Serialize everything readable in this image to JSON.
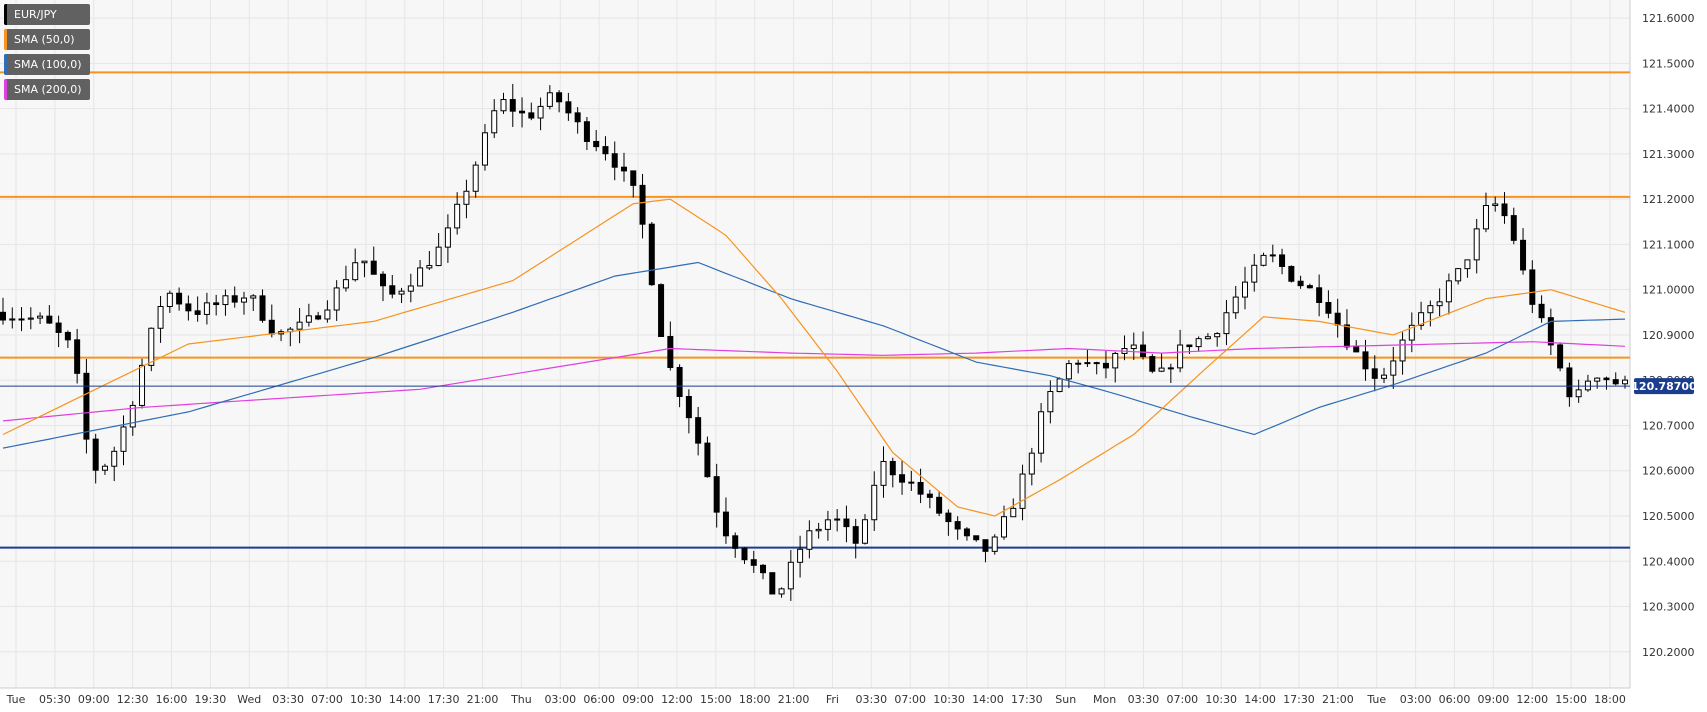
{
  "chart_data": {
    "type": "candlestick",
    "symbol": "EUR/JPY",
    "legend": [
      {
        "label": "EUR/JPY",
        "color": "#000000"
      },
      {
        "label": "SMA (50,0)",
        "color": "#f7931e"
      },
      {
        "label": "SMA (100,0)",
        "color": "#2f6db5"
      },
      {
        "label": "SMA (200,0)",
        "color": "#e040e0"
      }
    ],
    "ylim": [
      120.12,
      121.64
    ],
    "y_ticks": [
      "121.6000",
      "121.5000",
      "121.4000",
      "121.3000",
      "121.2000",
      "121.1000",
      "121.0000",
      "120.9000",
      "120.8000",
      "120.7000",
      "120.6000",
      "120.5000",
      "120.4000",
      "120.3000",
      "120.2000"
    ],
    "x_ticks": [
      "Tue",
      "05:30",
      "09:00",
      "12:30",
      "16:00",
      "19:30",
      "Wed",
      "03:30",
      "07:00",
      "10:30",
      "14:00",
      "17:30",
      "21:00",
      "Thu",
      "03:00",
      "06:00",
      "09:00",
      "12:00",
      "15:00",
      "18:00",
      "21:00",
      "Fri",
      "03:30",
      "07:00",
      "10:30",
      "14:00",
      "17:30",
      "Sun",
      "Mon",
      "03:30",
      "07:00",
      "10:30",
      "14:00",
      "17:30",
      "21:00",
      "Tue",
      "03:00",
      "06:00",
      "09:00",
      "12:00",
      "15:00",
      "18:00"
    ],
    "last_price": "120.78700",
    "horizontal_levels": [
      {
        "value": 121.48,
        "color": "#f7931e"
      },
      {
        "value": 121.205,
        "color": "#f7931e"
      },
      {
        "value": 120.85,
        "color": "#f7931e"
      },
      {
        "value": 120.43,
        "color": "#1a3d8f"
      }
    ],
    "price_path": [
      [
        0,
        120.95
      ],
      [
        5,
        120.93
      ],
      [
        8,
        120.87
      ],
      [
        10,
        120.6
      ],
      [
        12,
        120.62
      ],
      [
        14,
        120.72
      ],
      [
        16,
        120.87
      ],
      [
        18,
        121.0
      ],
      [
        21,
        120.95
      ],
      [
        24,
        120.97
      ],
      [
        27,
        120.99
      ],
      [
        30,
        120.9
      ],
      [
        33,
        120.92
      ],
      [
        36,
        120.98
      ],
      [
        39,
        121.08
      ],
      [
        42,
        120.98
      ],
      [
        45,
        121.03
      ],
      [
        48,
        121.1
      ],
      [
        51,
        121.25
      ],
      [
        54,
        121.42
      ],
      [
        57,
        121.38
      ],
      [
        60,
        121.43
      ],
      [
        63,
        121.35
      ],
      [
        66,
        121.3
      ],
      [
        69,
        121.2
      ],
      [
        72,
        120.85
      ],
      [
        75,
        120.7
      ],
      [
        78,
        120.48
      ],
      [
        81,
        120.4
      ],
      [
        84,
        120.32
      ],
      [
        87,
        120.45
      ],
      [
        90,
        120.5
      ],
      [
        93,
        120.43
      ],
      [
        95,
        120.62
      ],
      [
        98,
        120.58
      ],
      [
        101,
        120.52
      ],
      [
        104,
        120.45
      ],
      [
        107,
        120.42
      ],
      [
        110,
        120.55
      ],
      [
        113,
        120.75
      ],
      [
        116,
        120.85
      ],
      [
        119,
        120.82
      ],
      [
        122,
        120.88
      ],
      [
        125,
        120.8
      ],
      [
        128,
        120.88
      ],
      [
        131,
        120.9
      ],
      [
        134,
        121.0
      ],
      [
        137,
        121.08
      ],
      [
        140,
        121.02
      ],
      [
        143,
        120.98
      ],
      [
        146,
        120.87
      ],
      [
        149,
        120.8
      ],
      [
        152,
        120.9
      ],
      [
        155,
        120.97
      ],
      [
        158,
        121.05
      ],
      [
        161,
        121.2
      ],
      [
        163,
        121.15
      ],
      [
        165,
        121.0
      ],
      [
        167,
        120.9
      ],
      [
        170,
        120.75
      ],
      [
        172,
        120.82
      ],
      [
        175,
        120.79
      ]
    ],
    "sma50": [
      [
        0,
        120.68
      ],
      [
        20,
        120.88
      ],
      [
        40,
        120.93
      ],
      [
        55,
        121.02
      ],
      [
        68,
        121.19
      ],
      [
        72,
        121.2
      ],
      [
        78,
        121.12
      ],
      [
        84,
        120.98
      ],
      [
        90,
        120.82
      ],
      [
        96,
        120.64
      ],
      [
        103,
        120.52
      ],
      [
        107,
        120.5
      ],
      [
        114,
        120.58
      ],
      [
        122,
        120.68
      ],
      [
        130,
        120.83
      ],
      [
        136,
        120.94
      ],
      [
        142,
        120.93
      ],
      [
        150,
        120.9
      ],
      [
        160,
        120.98
      ],
      [
        167,
        121.0
      ],
      [
        175,
        120.95
      ]
    ],
    "sma100": [
      [
        0,
        120.65
      ],
      [
        20,
        120.73
      ],
      [
        40,
        120.85
      ],
      [
        55,
        120.95
      ],
      [
        66,
        121.03
      ],
      [
        75,
        121.06
      ],
      [
        85,
        120.98
      ],
      [
        95,
        120.92
      ],
      [
        105,
        120.84
      ],
      [
        113,
        120.81
      ],
      [
        120,
        120.77
      ],
      [
        128,
        120.72
      ],
      [
        135,
        120.68
      ],
      [
        142,
        120.74
      ],
      [
        150,
        120.79
      ],
      [
        160,
        120.86
      ],
      [
        167,
        120.93
      ],
      [
        175,
        120.935
      ]
    ],
    "sma200": [
      [
        0,
        120.71
      ],
      [
        15,
        120.74
      ],
      [
        30,
        120.76
      ],
      [
        45,
        120.78
      ],
      [
        60,
        120.83
      ],
      [
        72,
        120.87
      ],
      [
        85,
        120.86
      ],
      [
        95,
        120.855
      ],
      [
        105,
        120.86
      ],
      [
        115,
        120.87
      ],
      [
        125,
        120.86
      ],
      [
        135,
        120.87
      ],
      [
        145,
        120.875
      ],
      [
        155,
        120.88
      ],
      [
        165,
        120.885
      ],
      [
        175,
        120.875
      ]
    ]
  }
}
